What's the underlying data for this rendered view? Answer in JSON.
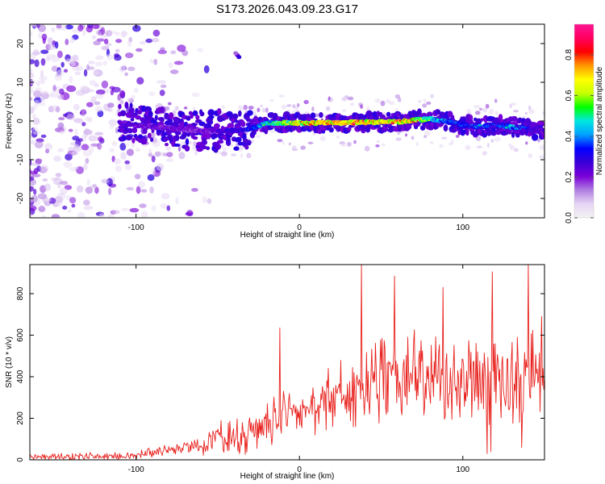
{
  "title": "S173.2026.043.09.23.G17",
  "colors": {
    "snr_line": "#e8201c",
    "frame": "#000000",
    "background": "#ffffff"
  },
  "chart_data": [
    {
      "type": "heatmap",
      "name": "spectrogram",
      "xlabel": "Height of straight line (km)",
      "ylabel": "Frequency (Hz)",
      "xlim": [
        -165,
        150
      ],
      "ylim": [
        -25,
        25
      ],
      "xticks": [
        -100,
        0,
        100
      ],
      "yticks": [
        -20,
        -10,
        0,
        10,
        20
      ],
      "colorbar": {
        "label": "Normalized spectral amplitude",
        "range": [
          0,
          0.95
        ],
        "ticks": [
          0,
          0.2,
          0.4,
          0.6,
          0.8
        ],
        "tick_labels": [
          "0.0",
          "0.2",
          "0.4",
          "0.6",
          "0.8"
        ],
        "colormap": [
          "#f2f2f2",
          "#e6d5f5",
          "#b07ee0",
          "#7a00d8",
          "#3a00d8",
          "#0000ff",
          "#00a0ff",
          "#00e8e0",
          "#00ff00",
          "#c8ff00",
          "#ffff00",
          "#ff9900",
          "#ff0000",
          "#ff0060",
          "#ff1493"
        ]
      },
      "ridge": {
        "description": "main signal ridge",
        "x": [
          -110,
          -90,
          -75,
          -60,
          -50,
          -40,
          -30,
          -20,
          -10,
          0,
          20,
          40,
          60,
          70,
          80,
          90,
          100,
          110,
          120,
          130,
          140,
          150
        ],
        "freq": [
          -0.5,
          -1.5,
          -2,
          -2.5,
          -2.5,
          -2.5,
          -2,
          -0.5,
          -0.5,
          -0.5,
          -0.5,
          -0.3,
          -0.2,
          0.2,
          0.5,
          0,
          -1,
          -1.5,
          -1,
          -1.5,
          -2,
          -2.5
        ],
        "peak_amplitude": [
          0.3,
          0.28,
          0.25,
          0.25,
          0.3,
          0.35,
          0.4,
          0.55,
          0.7,
          0.8,
          0.9,
          0.9,
          0.88,
          0.85,
          0.6,
          0.45,
          0.4,
          0.45,
          0.38,
          0.5,
          0.35,
          0.3
        ]
      },
      "noise_region": {
        "x_from": -165,
        "x_to": -110,
        "freq_range": [
          -25,
          25
        ],
        "amplitude": [
          0.05,
          0.3
        ]
      }
    },
    {
      "type": "line",
      "name": "snr",
      "xlabel": "Height of straight line (km)",
      "ylabel": "SNR (10 * v/v)",
      "xlim": [
        -165,
        150
      ],
      "ylim": [
        0,
        940
      ],
      "xticks": [
        -100,
        0,
        100
      ],
      "yticks": [
        0,
        200,
        400,
        600,
        800
      ],
      "envelope": {
        "x": [
          -165,
          -110,
          -100,
          -90,
          -80,
          -70,
          -60,
          -50,
          -40,
          -30,
          -20,
          -10,
          0,
          10,
          20,
          30,
          40,
          50,
          60,
          80,
          100,
          120,
          140,
          150
        ],
        "base": [
          15,
          15,
          25,
          35,
          45,
          55,
          80,
          90,
          100,
          120,
          150,
          200,
          240,
          270,
          300,
          330,
          360,
          380,
          390,
          390,
          380,
          380,
          390,
          390
        ],
        "amp": [
          15,
          20,
          20,
          25,
          35,
          50,
          70,
          80,
          90,
          100,
          110,
          120,
          120,
          130,
          150,
          170,
          180,
          190,
          210,
          220,
          220,
          220,
          220,
          220
        ]
      },
      "spikes": [
        {
          "x": -12,
          "y": 635
        },
        {
          "x": 38,
          "y": 940
        },
        {
          "x": 58,
          "y": 885
        },
        {
          "x": 88,
          "y": 830
        },
        {
          "x": 118,
          "y": 905
        },
        {
          "x": 140,
          "y": 940
        },
        {
          "x": 148,
          "y": 690
        },
        {
          "x": 115,
          "y": 30
        },
        {
          "x": 117,
          "y": 40
        },
        {
          "x": 136,
          "y": 60
        }
      ]
    }
  ]
}
